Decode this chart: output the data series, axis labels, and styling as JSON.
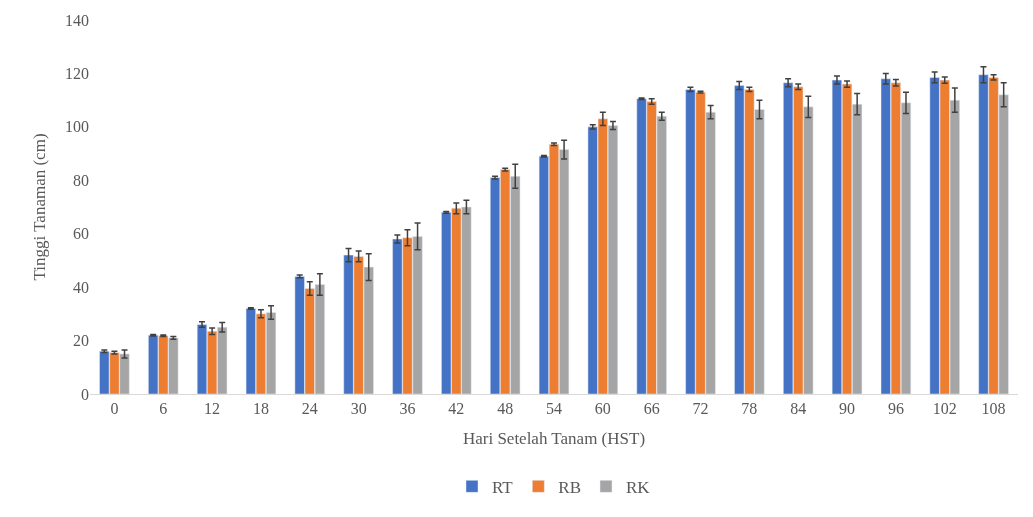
{
  "chart_data": {
    "type": "bar",
    "xlabel": "Hari Setelah Tanam (HST)",
    "ylabel": "Tinggi Tanaman (cm)",
    "categories": [
      "0",
      "6",
      "12",
      "18",
      "24",
      "30",
      "36",
      "42",
      "48",
      "54",
      "60",
      "66",
      "72",
      "78",
      "84",
      "90",
      "96",
      "102",
      "108"
    ],
    "ylim": [
      0,
      140
    ],
    "yticks": [
      0,
      20,
      40,
      60,
      80,
      100,
      120,
      140
    ],
    "grid": false,
    "legend": "bottom",
    "series": [
      {
        "name": "RT",
        "color": "#4472c4",
        "values": [
          16,
          22,
          26,
          32,
          44,
          52,
          58,
          68,
          81,
          89,
          100,
          110.5,
          114,
          115.5,
          116.5,
          117.5,
          118,
          118.5,
          119.5
        ],
        "errors": [
          0.5,
          0.3,
          1,
          0.3,
          0.5,
          2.5,
          1.5,
          0.3,
          0.5,
          0.3,
          0.8,
          0.3,
          0.8,
          1.5,
          1.5,
          1.5,
          2,
          2,
          3
        ]
      },
      {
        "name": "RB",
        "color": "#ed7d31",
        "values": [
          15.5,
          21.8,
          23.5,
          30,
          39.5,
          51.5,
          58.5,
          69.5,
          84,
          93.5,
          103,
          109.5,
          113,
          114,
          115,
          116,
          116.5,
          117.5,
          118.5
        ],
        "errors": [
          0.5,
          0.3,
          1.2,
          1.5,
          2.5,
          2,
          3,
          2,
          0.5,
          0.5,
          2.5,
          1,
          0.3,
          0.8,
          1,
          1.2,
          1.2,
          1.2,
          1
        ]
      },
      {
        "name": "RK",
        "color": "#a5a5a5",
        "values": [
          15,
          21,
          25,
          30.5,
          41,
          47.5,
          59,
          70,
          81.5,
          91.5,
          100.5,
          104,
          105.5,
          106.5,
          107.5,
          108.5,
          109,
          110,
          112
        ],
        "errors": [
          1.5,
          0.5,
          1.8,
          2.5,
          4,
          5,
          5,
          2.5,
          4.5,
          3.5,
          1.5,
          1.5,
          2.5,
          3.5,
          4,
          4,
          4,
          4.5,
          4.5
        ]
      }
    ]
  }
}
